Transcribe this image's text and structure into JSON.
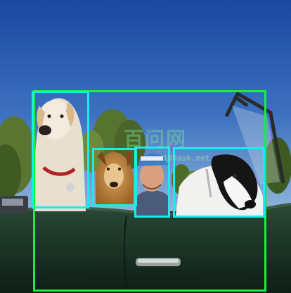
{
  "image": {
    "subject": "dogs-and-man-in-convertible",
    "colors": {
      "sky_top": "#1e4fa8",
      "sky_bottom": "#7ea7d8",
      "car": "#1e3a2a",
      "box_car": "#16f03c",
      "box_object": "#19ecec"
    }
  },
  "watermark": {
    "title": "百问网",
    "url": "100ask.net"
  },
  "detections": [
    {
      "label": "car"
    },
    {
      "label": "dog"
    },
    {
      "label": "dog"
    },
    {
      "label": "person"
    },
    {
      "label": "dog"
    }
  ]
}
